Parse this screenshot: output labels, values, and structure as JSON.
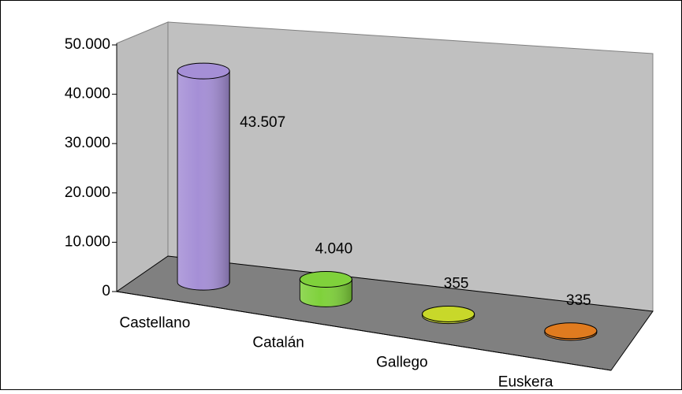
{
  "chart_data": {
    "type": "bar",
    "categories": [
      "Castellano",
      "Catalán",
      "Gallego",
      "Euskera"
    ],
    "values": [
      43507,
      4040,
      355,
      335
    ],
    "value_labels": [
      "43.507",
      "4.040",
      "355",
      "335"
    ],
    "colors": [
      "#a58fd6",
      "#7fd13b",
      "#c8d82a",
      "#e07b1f"
    ],
    "ylim": [
      0,
      50000
    ],
    "yticks": [
      0,
      {
        "value": 10000,
        "label": "10.000"
      },
      {
        "value": 20000,
        "label": "20.000"
      },
      {
        "value": 30000,
        "label": "30.000"
      },
      {
        "value": 40000,
        "label": "40.000"
      },
      {
        "value": 50000,
        "label": "50.000"
      }
    ]
  }
}
